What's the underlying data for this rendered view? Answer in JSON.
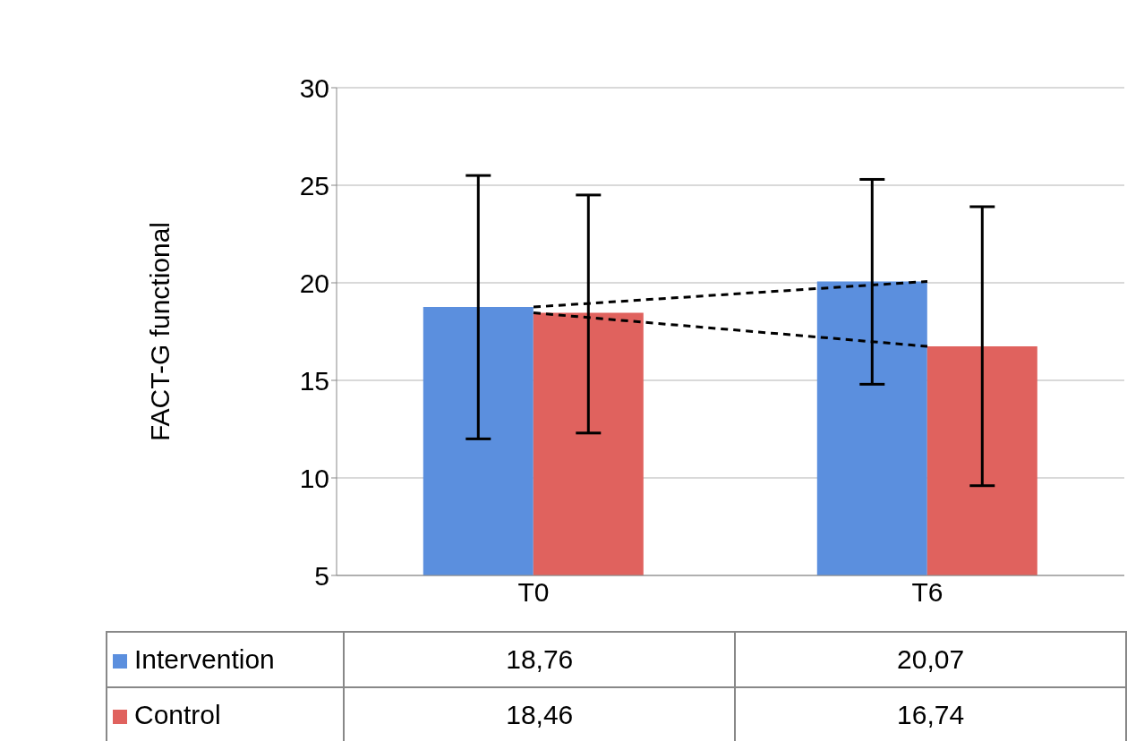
{
  "chart_data": {
    "type": "bar",
    "ylabel": "FACT-G functional",
    "categories": [
      "T0",
      "T6"
    ],
    "ylim": [
      5,
      30
    ],
    "yticks": [
      5,
      10,
      15,
      20,
      25,
      30
    ],
    "grid": "y",
    "legend": "bottom",
    "series": [
      {
        "name": "Intervention",
        "color": "#5b8fde",
        "values": [
          18.76,
          20.07
        ],
        "errors": [
          [
            12.0,
            25.5
          ],
          [
            14.8,
            25.3
          ]
        ],
        "value_labels": [
          "18,76",
          "20,07"
        ]
      },
      {
        "name": "Control",
        "color": "#e0625e",
        "values": [
          18.46,
          16.74
        ],
        "errors": [
          [
            12.3,
            24.5
          ],
          [
            9.6,
            23.9
          ]
        ],
        "value_labels": [
          "18,46",
          "16,74"
        ]
      },
      {
        "type": "line",
        "color": "#000000",
        "line_style": "dashed",
        "values": [
          18.76,
          20.07
        ]
      },
      {
        "type": "line",
        "color": "#000000",
        "line_style": "dashed",
        "values": [
          18.46,
          16.74
        ]
      }
    ]
  }
}
